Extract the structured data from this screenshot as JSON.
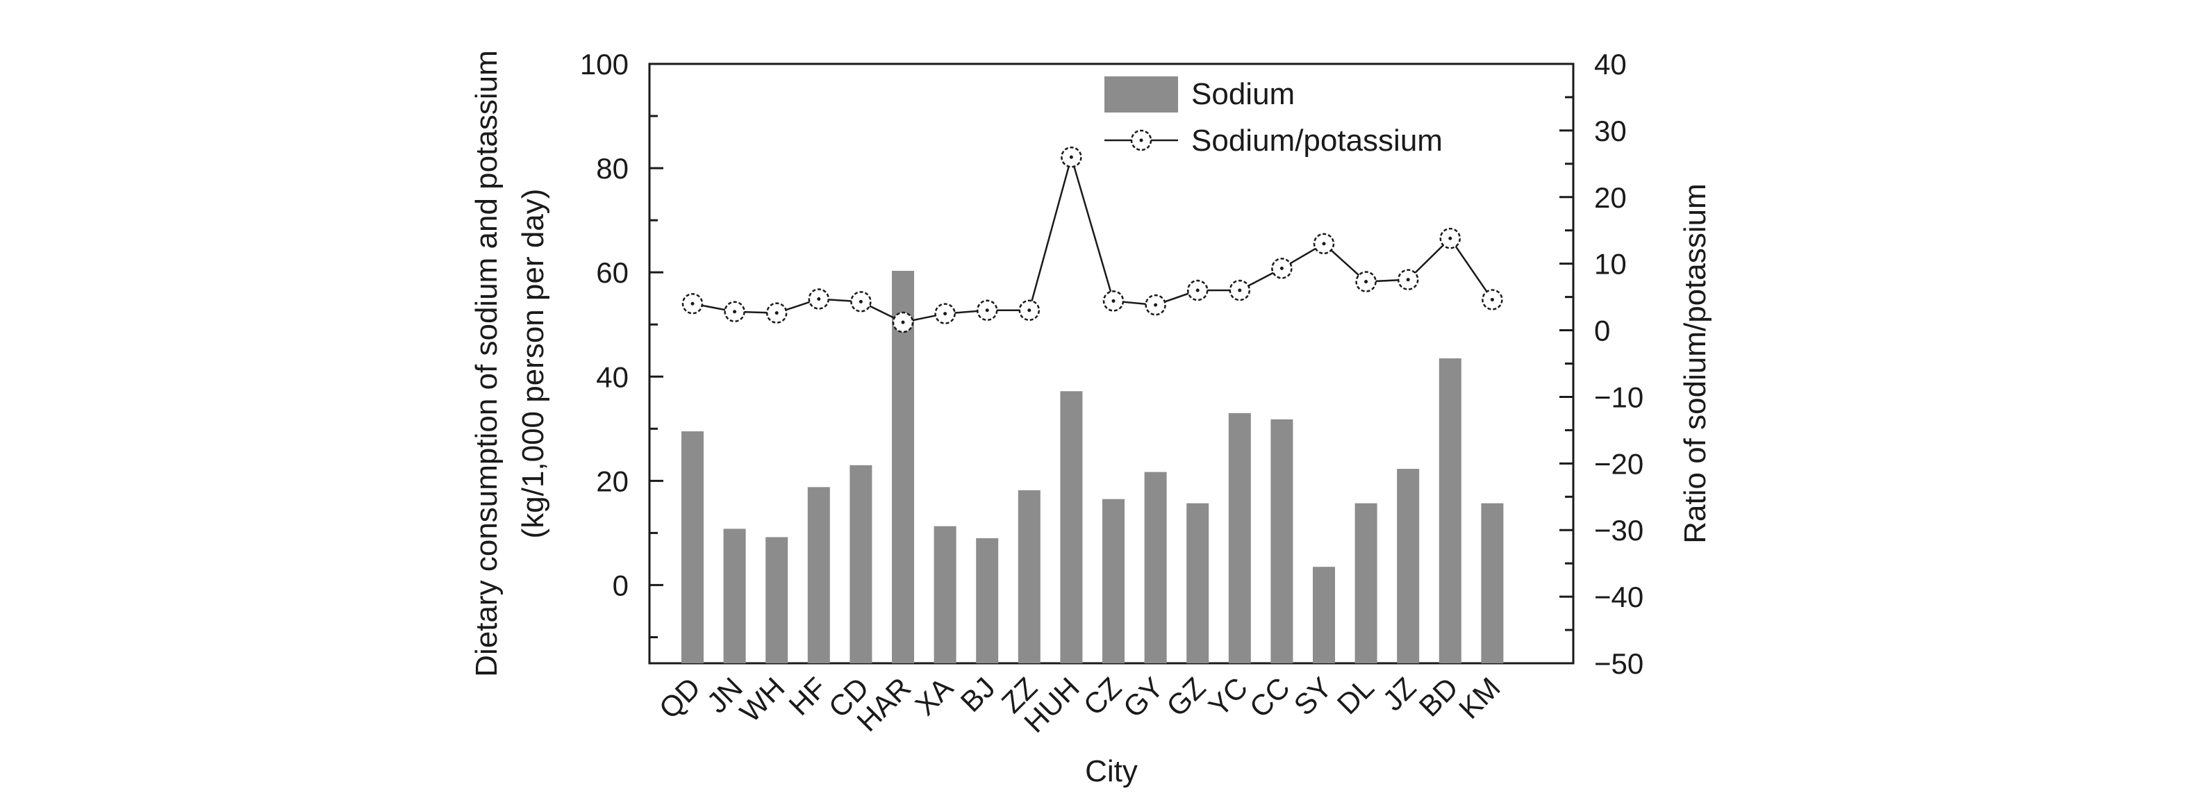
{
  "chart_data": {
    "type": "bar",
    "categories": [
      "QD",
      "JN",
      "WH",
      "HF",
      "CD",
      "HAR",
      "XA",
      "BJ",
      "ZZ",
      "HUH",
      "CZ",
      "GY",
      "GZ",
      "YC",
      "CC",
      "SY",
      "DL",
      "JZ",
      "BD",
      "KM"
    ],
    "xlabel": "City",
    "ylabel": [
      "Dietary consumption of sodium and potassium",
      "(kg/1,000 person per day)"
    ],
    "y2label": "Ratio of sodium/potassium",
    "ylim": [
      -15,
      100
    ],
    "y2lim": [
      -50,
      40
    ],
    "yticks": [
      0,
      20,
      40,
      60,
      80,
      100
    ],
    "y2ticks": [
      -50,
      -40,
      -30,
      -20,
      -10,
      0,
      10,
      20,
      30,
      40
    ],
    "series": [
      {
        "name": "Sodium",
        "type": "bar",
        "axis": "left",
        "color": "#8c8c8c",
        "values": [
          29.5,
          10.8,
          9.2,
          18.8,
          23.0,
          60.3,
          11.3,
          9.0,
          18.2,
          37.2,
          16.5,
          21.7,
          15.7,
          33.0,
          31.8,
          3.5,
          15.7,
          22.3,
          43.5,
          15.7
        ]
      },
      {
        "name": "Sodium/potassium",
        "type": "line",
        "axis": "right",
        "color": "#1a1a1a",
        "marker": "circle-dot",
        "values": [
          4.0,
          2.8,
          2.6,
          4.7,
          4.3,
          1.2,
          2.5,
          3.0,
          3.0,
          26.0,
          4.4,
          3.8,
          6.0,
          6.0,
          9.3,
          13.0,
          7.3,
          7.6,
          13.8,
          4.6
        ]
      }
    ],
    "legend_position": "top-center",
    "grid": false
  }
}
